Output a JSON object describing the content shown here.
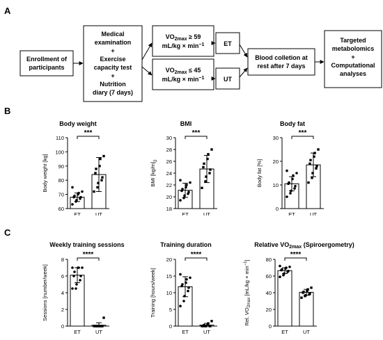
{
  "panels": {
    "a": "A",
    "b": "B",
    "c": "C"
  },
  "flowchart": {
    "enrollment": [
      "Enrollment of",
      "participants"
    ],
    "medical": [
      "Medical",
      "examination",
      "+",
      "Exercise",
      "capacity test",
      "+",
      "Nutrition",
      "diary (7 days)"
    ],
    "vo2_high": {
      "prefix": "VO",
      "sub": "2max",
      "op": " ≥ 59",
      "unit": "mL/kg × min",
      "sup": "−1"
    },
    "vo2_low": {
      "prefix": "VO",
      "sub": "2max",
      "op": " ≤ 45",
      "unit": "mL/kg × min",
      "sup": "−1"
    },
    "et": "ET",
    "ut": "UT",
    "blood": [
      "Blood colletion at",
      "rest after 7 days"
    ],
    "targeted": [
      "Targeted",
      "metabolomics",
      "+",
      "Computational",
      "analyses"
    ]
  },
  "chart_data": [
    {
      "type": "bar",
      "title": "Body weight",
      "ylabel": "Body weight [kg]",
      "categories": [
        "ET",
        "UT"
      ],
      "values": [
        68,
        84
      ],
      "errors": [
        3,
        12
      ],
      "ylim": [
        60,
        110
      ],
      "yticks": [
        60,
        70,
        80,
        90,
        100,
        110
      ],
      "significance": "***",
      "points": [
        [
          63,
          65,
          66,
          67,
          68,
          68,
          69,
          70,
          71,
          72,
          75
        ],
        [
          72,
          75,
          78,
          80,
          82,
          85,
          88,
          90,
          95,
          97
        ]
      ]
    },
    {
      "type": "bar",
      "title": "BMI",
      "ylabel": "BMI [kg/m",
      "ylabel_sup": "2",
      "ylabel_end": "]",
      "categories": [
        "ET",
        "UT"
      ],
      "values": [
        21.1,
        24.7
      ],
      "errors": [
        1.2,
        2.3
      ],
      "ylim": [
        18,
        30
      ],
      "yticks": [
        18,
        20,
        22,
        24,
        26,
        28,
        30
      ],
      "significance": "***",
      "points": [
        [
          19.4,
          19.8,
          20.2,
          20.5,
          20.8,
          21.0,
          21.3,
          21.6,
          22.0,
          22.4,
          22.8
        ],
        [
          21.5,
          22.6,
          23.4,
          24.0,
          24.6,
          25.0,
          25.6,
          26.4,
          27.2,
          28.0
        ]
      ]
    },
    {
      "type": "bar",
      "title": "Body fat",
      "ylabel": "Body fat [%]",
      "categories": [
        "ET",
        "UT"
      ],
      "values": [
        10.5,
        18.5
      ],
      "errors": [
        3,
        5
      ],
      "ylim": [
        0,
        30
      ],
      "yticks": [
        0,
        10,
        20,
        30
      ],
      "significance": "***",
      "points": [
        [
          5,
          6.5,
          7.5,
          8.5,
          9.5,
          10.5,
          11,
          12.5,
          14,
          15,
          16
        ],
        [
          11,
          13,
          15,
          17,
          18,
          19,
          20.5,
          22,
          23.5,
          25
        ]
      ]
    },
    {
      "type": "bar",
      "title": "Weekly training sessions",
      "ylabel": "Sessions [number/week]",
      "categories": [
        "ET",
        "UT"
      ],
      "values": [
        6.1,
        0.1
      ],
      "errors": [
        0.9,
        0.3
      ],
      "ylim": [
        0,
        8
      ],
      "yticks": [
        0,
        2,
        4,
        6,
        8
      ],
      "significance": "****",
      "points": [
        [
          4.5,
          4.5,
          5,
          5.5,
          6,
          6,
          6.5,
          7,
          7,
          7,
          7
        ],
        [
          0,
          0,
          0,
          0,
          0,
          0,
          0,
          0,
          0,
          1
        ]
      ]
    },
    {
      "type": "bar",
      "title": "Training duration",
      "ylabel": "Training [hours/week]",
      "categories": [
        "ET",
        "UT"
      ],
      "values": [
        11.8,
        0.3
      ],
      "errors": [
        3,
        0.5
      ],
      "ylim": [
        0,
        20
      ],
      "yticks": [
        0,
        5,
        10,
        15,
        20
      ],
      "significance": "****",
      "points": [
        [
          6,
          7.5,
          9,
          10.5,
          11.5,
          12,
          12.5,
          13,
          14,
          14.5,
          15.5
        ],
        [
          0,
          0,
          0,
          0,
          0,
          0,
          0.3,
          0.5,
          0.8,
          1.5
        ]
      ]
    },
    {
      "type": "bar",
      "title_prefix": "Relative VO",
      "title_sub": "2max",
      "title_suffix": " (Spiroergometry)",
      "ylabel": "Rel. VO",
      "ylabel_sub": "2max",
      "ylabel_end": " [mL/kg × min",
      "ylabel_sup": "−1",
      "ylabel_close": "]",
      "categories": [
        "ET",
        "UT"
      ],
      "values": [
        66.5,
        40.5
      ],
      "errors": [
        3.5,
        3.5
      ],
      "ylim": [
        0,
        80
      ],
      "yticks": [
        0,
        20,
        40,
        60,
        80
      ],
      "significance": "****",
      "points": [
        [
          59,
          61,
          63,
          65,
          66,
          67,
          68,
          69,
          70,
          71,
          72
        ],
        [
          34,
          36,
          37,
          38,
          39,
          40,
          41,
          42,
          44,
          46
        ]
      ]
    }
  ]
}
